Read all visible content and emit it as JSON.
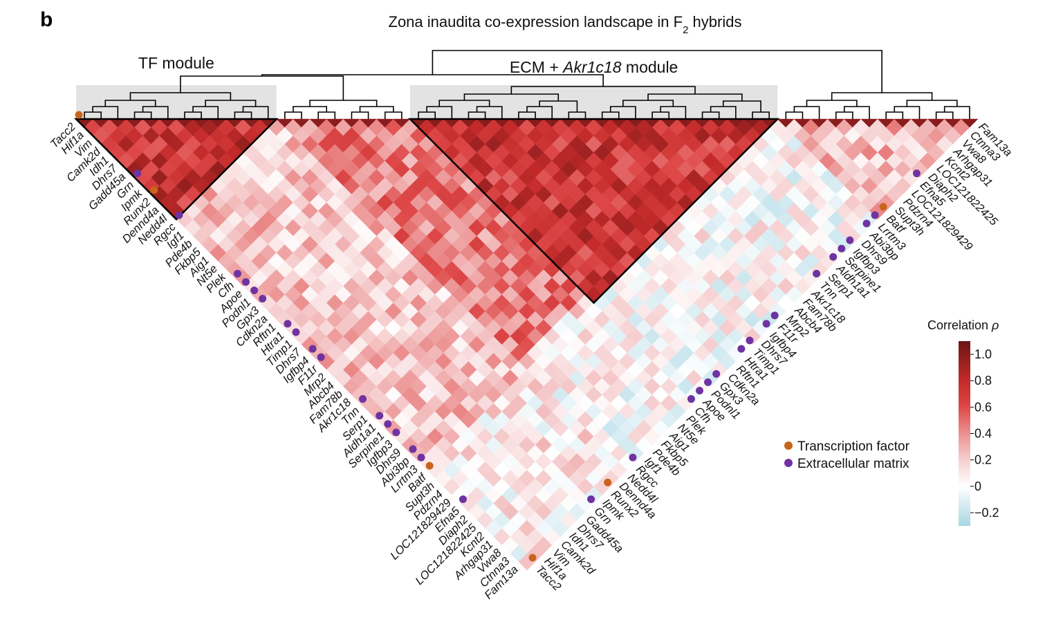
{
  "figure": {
    "panel_letter": "b",
    "title_main": "Zona inaudita co-expression landscape in F",
    "title_sub": "2",
    "title_tail": " hybrids",
    "modules": [
      {
        "label_plain": "TF module",
        "label_italic": "",
        "label_tail": "",
        "start": 0,
        "end": 11
      },
      {
        "label_plain": "ECM + ",
        "label_italic": "Akr1c18",
        "label_tail": " module",
        "start": 20,
        "end": 41
      }
    ],
    "marker_colors": {
      "tf": "#c8651b",
      "ecm": "#6f33a1"
    },
    "legend": [
      {
        "key": "tf",
        "label": "Transcription factor"
      },
      {
        "key": "ecm",
        "label": "Extracellular matrix"
      }
    ],
    "colorbar": {
      "title": "Correlation",
      "symbol": "ρ",
      "ticks": [
        {
          "value": 1.0,
          "label": "1.0"
        },
        {
          "value": 0.8,
          "label": "0.8"
        },
        {
          "value": 0.6,
          "label": "0.6"
        },
        {
          "value": 0.4,
          "label": "0.4"
        },
        {
          "value": 0.2,
          "label": "0.2"
        },
        {
          "value": 0,
          "label": "0"
        },
        {
          "value": -0.2,
          "label": "−0.2"
        }
      ],
      "min": -0.3,
      "max": 1.1
    }
  },
  "chart_data": {
    "type": "heatmap",
    "genes": [
      {
        "name": "Tacc2",
        "marker": "tf"
      },
      {
        "name": "Hif1a",
        "marker": ""
      },
      {
        "name": "Vim",
        "marker": ""
      },
      {
        "name": "Camk2d",
        "marker": ""
      },
      {
        "name": "Idh1",
        "marker": ""
      },
      {
        "name": "Dhrs7",
        "marker": ""
      },
      {
        "name": "Gadd45a",
        "marker": ""
      },
      {
        "name": "Grn",
        "marker": "ecm"
      },
      {
        "name": "Ipmk",
        "marker": ""
      },
      {
        "name": "Runx2",
        "marker": "tf"
      },
      {
        "name": "Dennd4a",
        "marker": ""
      },
      {
        "name": "Nedd4l",
        "marker": ""
      },
      {
        "name": "Rgcc",
        "marker": "ecm"
      },
      {
        "name": "Igf1",
        "marker": ""
      },
      {
        "name": "Pde4b",
        "marker": ""
      },
      {
        "name": "Fkbp5",
        "marker": ""
      },
      {
        "name": "Aig1",
        "marker": ""
      },
      {
        "name": "Nt5e",
        "marker": ""
      },
      {
        "name": "Plek",
        "marker": ""
      },
      {
        "name": "Cfh",
        "marker": "ecm"
      },
      {
        "name": "Apoe",
        "marker": "ecm"
      },
      {
        "name": "Podnl1",
        "marker": "ecm"
      },
      {
        "name": "Gpx3",
        "marker": "ecm"
      },
      {
        "name": "Cdkn2a",
        "marker": ""
      },
      {
        "name": "Rftn1",
        "marker": ""
      },
      {
        "name": "Htra1",
        "marker": "ecm"
      },
      {
        "name": "Timp1",
        "marker": "ecm"
      },
      {
        "name": "Dhrs7",
        "marker": ""
      },
      {
        "name": "Igfbp4",
        "marker": "ecm"
      },
      {
        "name": "F11r",
        "marker": "ecm"
      },
      {
        "name": "Mrp2",
        "marker": ""
      },
      {
        "name": "Abcb4",
        "marker": ""
      },
      {
        "name": "Fam78b",
        "marker": ""
      },
      {
        "name": "Akr1c18",
        "marker": ""
      },
      {
        "name": "Tnn",
        "marker": "ecm"
      },
      {
        "name": "Serp1",
        "marker": ""
      },
      {
        "name": "Aldh1a1",
        "marker": "ecm"
      },
      {
        "name": "Serpine1",
        "marker": "ecm"
      },
      {
        "name": "Igfbp3",
        "marker": "ecm"
      },
      {
        "name": "Dhrs9",
        "marker": ""
      },
      {
        "name": "Abi3bp",
        "marker": "ecm"
      },
      {
        "name": "Lrrtm3",
        "marker": "ecm"
      },
      {
        "name": "Batf",
        "marker": "tf"
      },
      {
        "name": "Supt3h",
        "marker": ""
      },
      {
        "name": "Pdzrn4",
        "marker": ""
      },
      {
        "name": "LOC121829429",
        "marker": ""
      },
      {
        "name": "Efna5",
        "marker": "ecm"
      },
      {
        "name": "Diaph2",
        "marker": ""
      },
      {
        "name": "LOC121822425",
        "marker": ""
      },
      {
        "name": "Kcnt2",
        "marker": ""
      },
      {
        "name": "Arhgap31",
        "marker": ""
      },
      {
        "name": "Vwa8",
        "marker": ""
      },
      {
        "name": "Ctnna3",
        "marker": ""
      },
      {
        "name": "Fam13a",
        "marker": ""
      }
    ],
    "value_range": [
      -0.3,
      1.0
    ],
    "block_correlations": [
      {
        "from": 0,
        "to": 11,
        "mean": 0.75
      },
      {
        "from": 20,
        "to": 41,
        "mean": 0.72
      },
      {
        "from": 12,
        "to": 40,
        "mean": 0.45
      },
      {
        "from": 42,
        "to": 53,
        "mean": 0.25
      }
    ]
  }
}
